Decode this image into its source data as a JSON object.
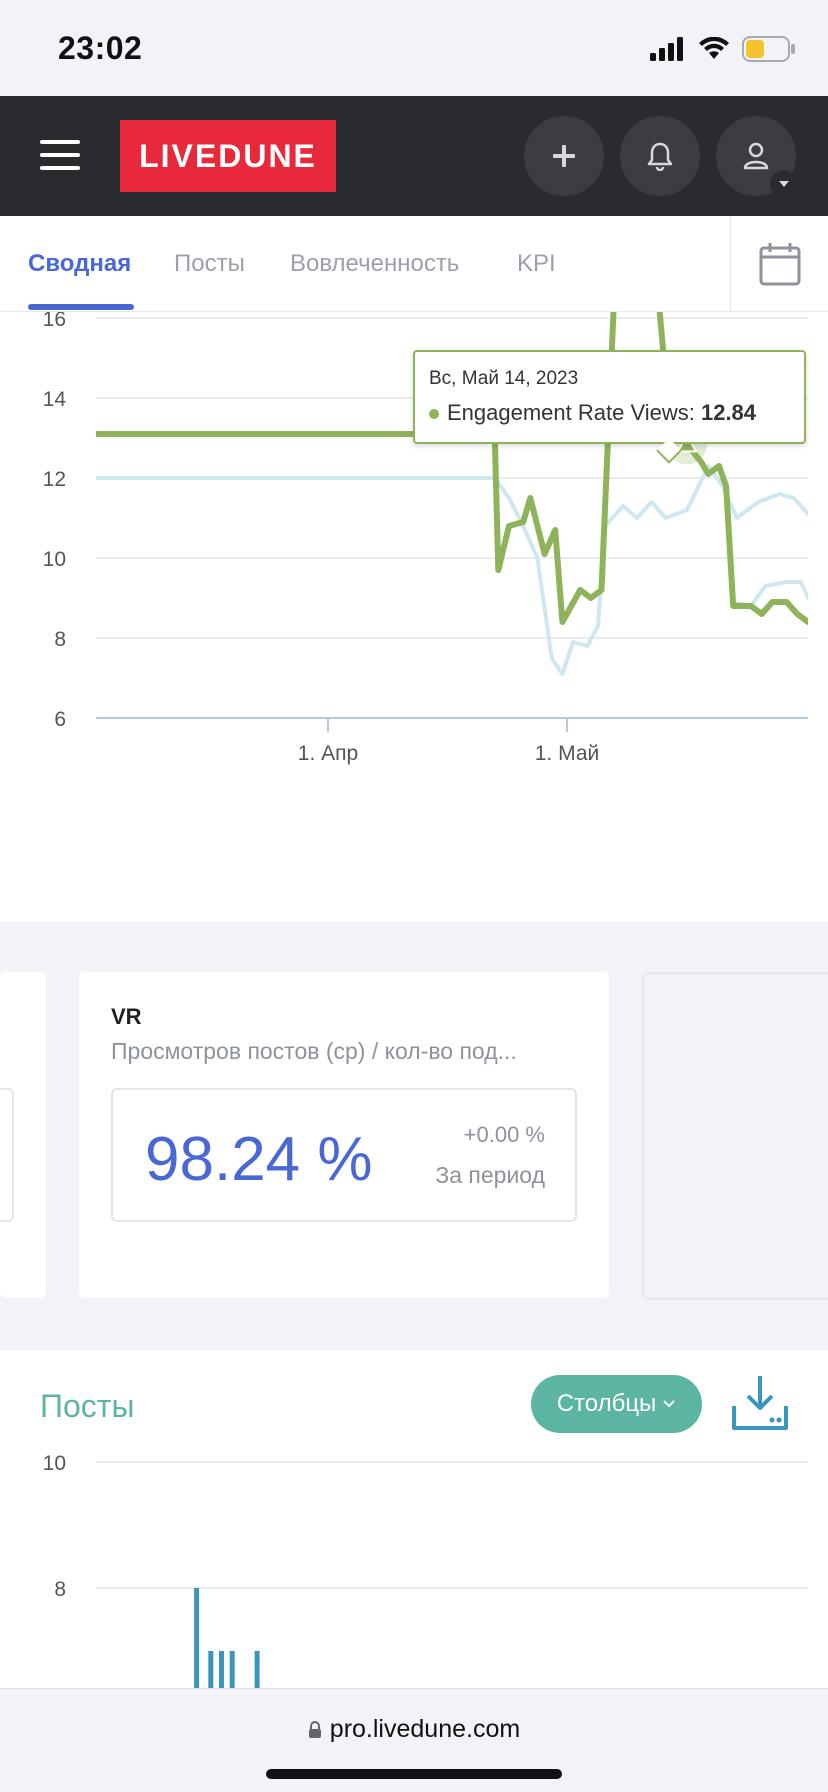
{
  "status_bar": {
    "time": "23:02"
  },
  "header": {
    "logo_text": "LIVEDUNE",
    "accent": "#e8283b",
    "buttons": [
      "plus-icon",
      "bell-icon",
      "user-icon"
    ]
  },
  "tabs": {
    "items": [
      {
        "label": "Сводная",
        "active": true
      },
      {
        "label": "Посты",
        "active": false
      },
      {
        "label": "Вовлеченность",
        "active": false
      },
      {
        "label": "KPI",
        "active": false
      }
    ],
    "calendar_icon": "calendar-icon"
  },
  "engagement_chart": {
    "tooltip": {
      "date": "Вс, Май 14, 2023",
      "series_label": "Engagement Rate Views: ",
      "value": "12.84"
    },
    "chart_data": {
      "type": "line",
      "y_ticks": [
        "16",
        "14",
        "12",
        "10",
        "8",
        "6"
      ],
      "ylim": [
        6,
        16
      ],
      "x_tick_labels": [
        "1. Апр",
        "1. Май"
      ],
      "grid": true,
      "series": [
        {
          "color": "#8fb35a",
          "points": [
            [
              0.0,
              13.1
            ],
            [
              0.56,
              13.1
            ],
            [
              0.565,
              9.7
            ],
            [
              0.58,
              10.8
            ],
            [
              0.6,
              10.9
            ],
            [
              0.61,
              11.5
            ],
            [
              0.63,
              10.1
            ],
            [
              0.645,
              10.7
            ],
            [
              0.655,
              8.4
            ],
            [
              0.68,
              9.2
            ],
            [
              0.695,
              9.0
            ],
            [
              0.71,
              9.2
            ],
            [
              0.73,
              17.5
            ],
            [
              0.785,
              17.5
            ],
            [
              0.8,
              14.5
            ],
            [
              0.815,
              13.0
            ],
            [
              0.83,
              12.84
            ],
            [
              0.85,
              12.4
            ],
            [
              0.86,
              12.1
            ],
            [
              0.875,
              12.3
            ],
            [
              0.885,
              11.8
            ],
            [
              0.895,
              8.8
            ],
            [
              0.92,
              8.8
            ],
            [
              0.935,
              8.6
            ],
            [
              0.95,
              8.9
            ],
            [
              0.97,
              8.9
            ],
            [
              0.985,
              8.6
            ],
            [
              1.0,
              8.4
            ]
          ]
        },
        {
          "color": "#cfe7ef",
          "points": [
            [
              0.0,
              13.1
            ],
            [
              0.56,
              13.1
            ]
          ]
        },
        {
          "color": "#cfe7ef",
          "points": [
            [
              0.0,
              12.0
            ],
            [
              0.56,
              12.0
            ],
            [
              0.58,
              11.5
            ],
            [
              0.6,
              10.8
            ],
            [
              0.62,
              10.0
            ],
            [
              0.64,
              7.5
            ],
            [
              0.655,
              7.1
            ],
            [
              0.67,
              7.9
            ],
            [
              0.69,
              7.8
            ],
            [
              0.705,
              8.3
            ],
            [
              0.715,
              10.8
            ],
            [
              0.74,
              11.3
            ],
            [
              0.76,
              11.0
            ],
            [
              0.78,
              11.4
            ],
            [
              0.8,
              11.0
            ],
            [
              0.83,
              11.2
            ],
            [
              0.86,
              12.3
            ],
            [
              0.88,
              11.8
            ],
            [
              0.9,
              11.0
            ],
            [
              0.93,
              11.4
            ],
            [
              0.96,
              11.6
            ],
            [
              0.98,
              11.5
            ],
            [
              1.0,
              11.1
            ]
          ]
        },
        {
          "color": "#cfe7ef",
          "points": [
            [
              0.895,
              8.9
            ],
            [
              0.92,
              8.8
            ],
            [
              0.94,
              9.3
            ],
            [
              0.97,
              9.4
            ],
            [
              0.99,
              9.4
            ],
            [
              1.0,
              9.0
            ]
          ]
        }
      ],
      "highlight_point": {
        "x": 0.83,
        "y": 12.84
      }
    }
  },
  "metrics": {
    "vr": {
      "title": "VR",
      "subtitle": "Просмотров постов (ср) / кол-во под...",
      "value": "98.24 %",
      "delta": "+0.00 %",
      "period": "За период"
    }
  },
  "posts": {
    "title": "Посты",
    "view_button": "Столбцы",
    "download_icon": "download-icon",
    "chart_data": {
      "type": "bar",
      "y_ticks": [
        "10",
        "8"
      ],
      "ylim": [
        7,
        10
      ],
      "bars": [
        {
          "x": 0.215,
          "value": 8.0
        },
        {
          "x": 0.235,
          "value": 7.0
        },
        {
          "x": 0.25,
          "value": 7.0
        },
        {
          "x": 0.265,
          "value": 7.0
        },
        {
          "x": 0.3,
          "value": 7.0
        }
      ],
      "bar_color": "#3a95bf"
    }
  },
  "url_bar": {
    "url": "pro.livedune.com"
  }
}
